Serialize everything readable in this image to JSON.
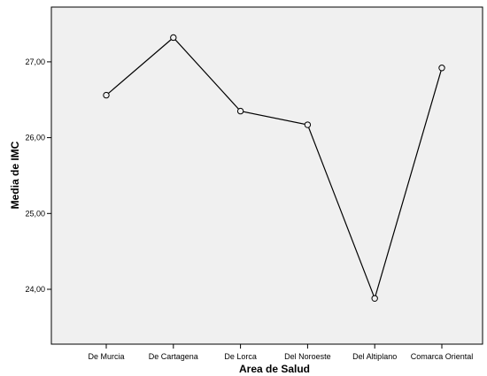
{
  "chart_data": {
    "type": "line",
    "title": "",
    "xlabel": "Area de Salud",
    "ylabel": "Media de IMC",
    "categories": [
      "De Murcia",
      "De Cartagena",
      "De Lorca",
      "Del Noroeste",
      "Del Altiplano",
      "Comarca Oriental"
    ],
    "series": [
      {
        "values": [
          26.56,
          27.32,
          26.35,
          26.17,
          23.88,
          26.92
        ]
      }
    ],
    "yticks": [
      "24,00",
      "25,00",
      "26,00",
      "27,00"
    ],
    "ylim": [
      23.3,
      27.7
    ],
    "grid": false,
    "colors": {
      "plot_background": "#f0f0f0",
      "line": "#000000",
      "marker_fill": "#f0f0f0"
    }
  }
}
